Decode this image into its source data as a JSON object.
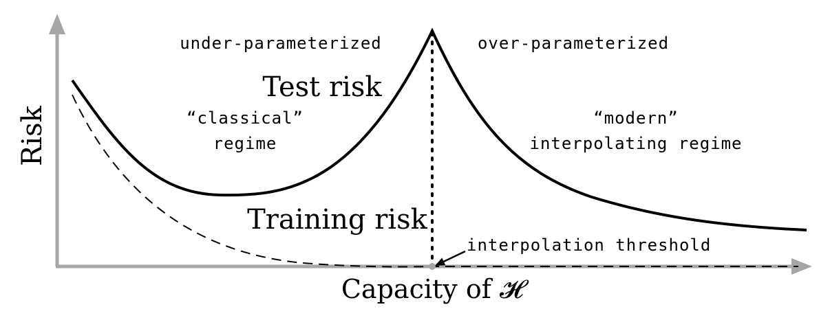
{
  "axes": {
    "y_label": "Risk",
    "x_label": "Capacity of 𝓗"
  },
  "regions": {
    "left_header": "under-parameterized",
    "right_header": "over-parameterized",
    "left_regime_line1": "“classical”",
    "left_regime_line2": "regime",
    "right_regime_line1": "“modern”",
    "right_regime_line2": "interpolating regime"
  },
  "curves": {
    "test_label": "Test risk",
    "train_label": "Training risk"
  },
  "annotation": {
    "threshold_label": "interpolation threshold"
  },
  "colors": {
    "axis": "#a6a6a6",
    "curve": "#000000"
  }
}
